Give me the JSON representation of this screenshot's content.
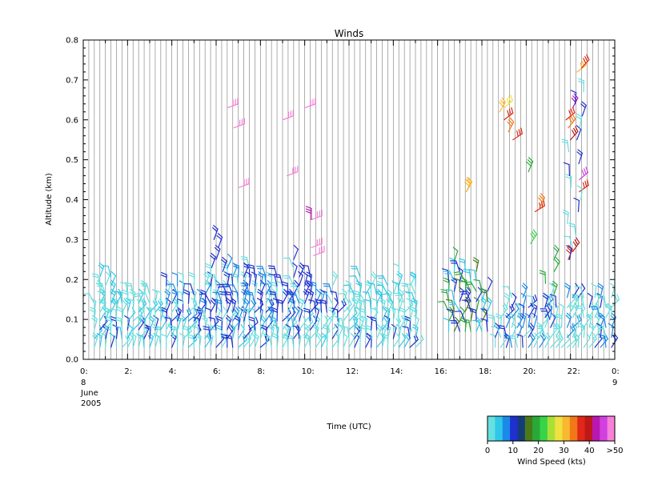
{
  "chart_data": {
    "type": "wind-barb time-height plot",
    "title": "Winds",
    "xlabel": "Time (UTC)",
    "ylabel": "Altitude (km)",
    "xlim": [
      0,
      24
    ],
    "ylim": [
      0.0,
      0.8
    ],
    "y_ticks": [
      "0.0",
      "0.1",
      "0.2",
      "0.3",
      "0.4",
      "0.5",
      "0.6",
      "0.7",
      "0.8"
    ],
    "x_ticks": [
      {
        "h": 0,
        "label": "0:"
      },
      {
        "h": 2,
        "label": "2:"
      },
      {
        "h": 4,
        "label": "4:"
      },
      {
        "h": 6,
        "label": "6:"
      },
      {
        "h": 8,
        "label": "8:"
      },
      {
        "h": 10,
        "label": "10:"
      },
      {
        "h": 12,
        "label": "12:"
      },
      {
        "h": 14,
        "label": "14:"
      },
      {
        "h": 16,
        "label": "16:"
      },
      {
        "h": 18,
        "label": "18:"
      },
      {
        "h": 20,
        "label": "20:"
      },
      {
        "h": 22,
        "label": "22:"
      },
      {
        "h": 24,
        "label": "0:"
      }
    ],
    "date_start_lines": [
      "8",
      "June",
      "2005"
    ],
    "date_end_lines": [
      "9"
    ],
    "grid": "vertical lines every profile",
    "colorbar": {
      "label": "Wind Speed (kts)",
      "colors": [
        "#66e0e0",
        "#30c8e8",
        "#1a8ae8",
        "#1f2fd0",
        "#143c78",
        "#4a7a18",
        "#2aa838",
        "#36d448",
        "#a8e038",
        "#f0e040",
        "#f8b830",
        "#f07818",
        "#e02818",
        "#c01818",
        "#b818b0",
        "#d040e0",
        "#f880d8"
      ],
      "tick_labels": [
        "0",
        "10",
        "20",
        "30",
        "40",
        ">50"
      ]
    }
  }
}
